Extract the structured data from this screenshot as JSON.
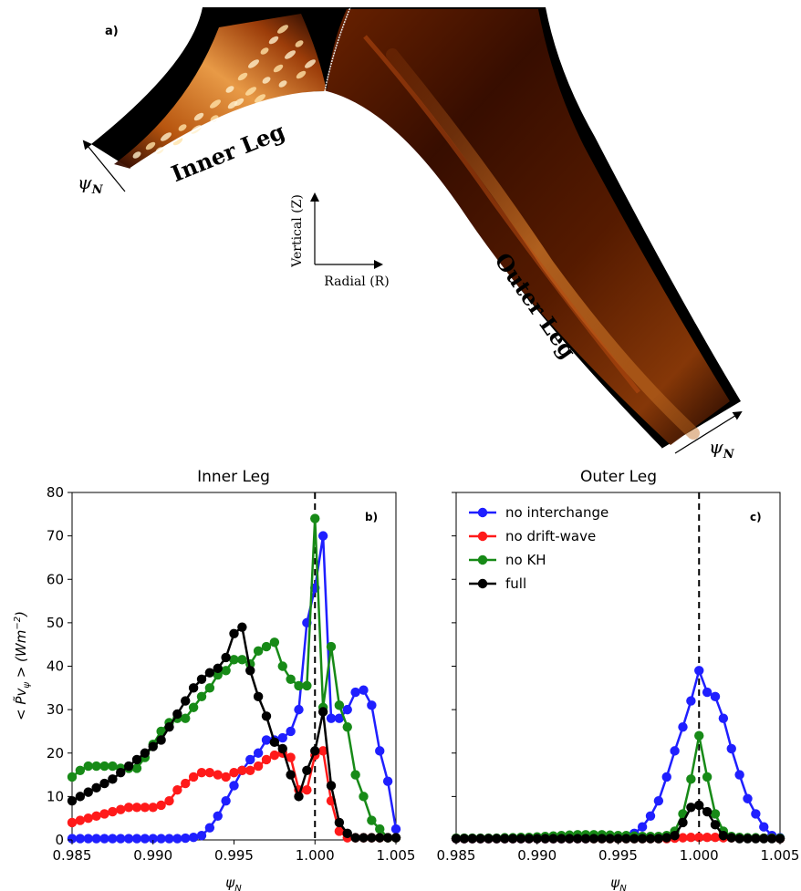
{
  "panel_a": {
    "label": "a)",
    "inner_leg_label": "Inner Leg",
    "outer_leg_label": "Outer Leg",
    "vertical_axis_label": "Vertical (Z)",
    "radial_axis_label": "Radial (R)",
    "psi_label_left": "ψ",
    "psi_label_right": "ψ",
    "psi_subscript": "N"
  },
  "colors": {
    "no_interchange": "#1f1fff",
    "no_drift_wave": "#ff1a1a",
    "no_kh": "#178a17",
    "full": "#000000",
    "image_dark": "#000000",
    "image_mid": "#7a2500",
    "image_bright": "#ffb060"
  },
  "chart_data": [
    {
      "type": "line",
      "panel_label": "b)",
      "title": "Inner Leg",
      "xlabel": "ψ",
      "xlabel_sub": "N",
      "ylabel": "< P̃v",
      "ylabel_sub": "ψ",
      "ylabel_tail": " > (Wm",
      "ylabel_sup": "−2",
      "ylabel_end": ")",
      "xlim": [
        0.985,
        1.005
      ],
      "ylim": [
        0,
        80
      ],
      "xticks": [
        "0.985",
        "0.990",
        "0.995",
        "1.000",
        "1.005"
      ],
      "yticks": [
        "0",
        "10",
        "20",
        "30",
        "40",
        "50",
        "60",
        "70",
        "80"
      ],
      "vline": 1.0,
      "series": [
        {
          "name": "no interchange",
          "color_key": "no_interchange",
          "x": [
            0.985,
            0.9855,
            0.986,
            0.9865,
            0.987,
            0.9875,
            0.988,
            0.9885,
            0.989,
            0.9895,
            0.99,
            0.9905,
            0.991,
            0.9915,
            0.992,
            0.9925,
            0.993,
            0.9935,
            0.994,
            0.9945,
            0.995,
            0.9955,
            0.996,
            0.9965,
            0.997,
            0.9975,
            0.998,
            0.9985,
            0.999,
            0.9995,
            1.0,
            1.0005,
            1.001,
            1.0015,
            1.002,
            1.0025,
            1.003,
            1.0035,
            1.004,
            1.0045,
            1.005
          ],
          "y": [
            0.3,
            0.3,
            0.3,
            0.3,
            0.3,
            0.3,
            0.3,
            0.3,
            0.3,
            0.3,
            0.3,
            0.3,
            0.3,
            0.3,
            0.4,
            0.6,
            1.0,
            2.8,
            5.5,
            9.0,
            12.5,
            16.0,
            18.5,
            20.0,
            23.0,
            23.0,
            23.5,
            25.0,
            30.0,
            50.0,
            58.0,
            70.0,
            28.0,
            28.0,
            30.0,
            34.0,
            34.5,
            31.0,
            20.5,
            13.5,
            2.5
          ]
        },
        {
          "name": "no drift-wave",
          "color_key": "no_drift_wave",
          "x": [
            0.985,
            0.9855,
            0.986,
            0.9865,
            0.987,
            0.9875,
            0.988,
            0.9885,
            0.989,
            0.9895,
            0.99,
            0.9905,
            0.991,
            0.9915,
            0.992,
            0.9925,
            0.993,
            0.9935,
            0.994,
            0.9945,
            0.995,
            0.9955,
            0.996,
            0.9965,
            0.997,
            0.9975,
            0.998,
            0.9985,
            0.999,
            0.9995,
            1.0,
            1.0005,
            1.001,
            1.0015,
            1.002,
            1.0025,
            1.003,
            1.0035,
            1.004,
            1.0045,
            1.005
          ],
          "y": [
            4.0,
            4.5,
            5.0,
            5.5,
            6.0,
            6.5,
            7.0,
            7.5,
            7.5,
            7.5,
            7.5,
            8.0,
            9.0,
            11.5,
            13.0,
            14.5,
            15.5,
            15.5,
            15.0,
            14.5,
            15.5,
            16.0,
            16.0,
            17.0,
            18.5,
            19.5,
            20.0,
            19.0,
            11.5,
            11.5,
            19.5,
            20.5,
            9.0,
            2.0,
            0.5,
            0.5,
            0.5,
            0.5,
            0.5,
            0.5,
            0.5
          ]
        },
        {
          "name": "no KH",
          "color_key": "no_kh",
          "x": [
            0.985,
            0.9855,
            0.986,
            0.9865,
            0.987,
            0.9875,
            0.988,
            0.9885,
            0.989,
            0.9895,
            0.99,
            0.9905,
            0.991,
            0.9915,
            0.992,
            0.9925,
            0.993,
            0.9935,
            0.994,
            0.9945,
            0.995,
            0.9955,
            0.996,
            0.9965,
            0.997,
            0.9975,
            0.998,
            0.9985,
            0.999,
            0.9995,
            1.0,
            1.0005,
            1.001,
            1.0015,
            1.002,
            1.0025,
            1.003,
            1.0035,
            1.004,
            1.0045,
            1.005
          ],
          "y": [
            14.5,
            16.0,
            17.0,
            17.0,
            17.0,
            17.0,
            16.5,
            16.5,
            16.5,
            19.0,
            22.0,
            25.0,
            27.0,
            28.0,
            28.0,
            30.5,
            33.0,
            35.0,
            38.0,
            39.0,
            41.5,
            41.5,
            40.5,
            43.5,
            44.5,
            45.5,
            40.0,
            37.0,
            35.5,
            35.5,
            74.0,
            30.5,
            44.5,
            31.0,
            26.0,
            15.0,
            10.0,
            4.5,
            2.5,
            0.5,
            0.5
          ]
        },
        {
          "name": "full",
          "color_key": "full",
          "x": [
            0.985,
            0.9855,
            0.986,
            0.9865,
            0.987,
            0.9875,
            0.988,
            0.9885,
            0.989,
            0.9895,
            0.99,
            0.9905,
            0.991,
            0.9915,
            0.992,
            0.9925,
            0.993,
            0.9935,
            0.994,
            0.9945,
            0.995,
            0.9955,
            0.996,
            0.9965,
            0.997,
            0.9975,
            0.998,
            0.9985,
            0.999,
            0.9995,
            1.0,
            1.0005,
            1.001,
            1.0015,
            1.002,
            1.0025,
            1.003,
            1.0035,
            1.004,
            1.0045,
            1.005
          ],
          "y": [
            9.0,
            10.0,
            11.0,
            12.0,
            13.0,
            14.0,
            15.5,
            17.0,
            18.5,
            20.0,
            21.5,
            23.0,
            26.0,
            29.0,
            32.0,
            35.0,
            37.0,
            38.5,
            39.5,
            42.0,
            47.5,
            49.0,
            39.0,
            33.0,
            28.5,
            22.5,
            21.0,
            15.0,
            10.0,
            16.0,
            20.5,
            29.5,
            12.5,
            4.0,
            1.5,
            0.5,
            0.5,
            0.5,
            0.5,
            0.5,
            0.5
          ]
        }
      ]
    },
    {
      "type": "line",
      "panel_label": "c)",
      "title": "Outer Leg",
      "xlabel": "ψ",
      "xlabel_sub": "N",
      "xlim": [
        0.985,
        1.005
      ],
      "ylim": [
        0,
        80
      ],
      "xticks": [
        "0.985",
        "0.990",
        "0.995",
        "1.000",
        "1.005"
      ],
      "vline": 1.0,
      "legend": "top-left",
      "series": [
        {
          "name": "no interchange",
          "color_key": "no_interchange",
          "x": [
            0.985,
            0.9855,
            0.986,
            0.9865,
            0.987,
            0.9875,
            0.988,
            0.9885,
            0.989,
            0.9895,
            0.99,
            0.9905,
            0.991,
            0.9915,
            0.992,
            0.9925,
            0.993,
            0.9935,
            0.994,
            0.9945,
            0.995,
            0.9955,
            0.996,
            0.9965,
            0.997,
            0.9975,
            0.998,
            0.9985,
            0.999,
            0.9995,
            1.0,
            1.0005,
            1.001,
            1.0015,
            1.002,
            1.0025,
            1.003,
            1.0035,
            1.004,
            1.0045,
            1.005
          ],
          "y": [
            0.3,
            0.3,
            0.3,
            0.3,
            0.3,
            0.3,
            0.3,
            0.3,
            0.3,
            0.3,
            0.3,
            0.3,
            0.3,
            0.3,
            0.3,
            0.3,
            0.3,
            0.4,
            0.4,
            0.4,
            0.5,
            0.8,
            1.5,
            3.0,
            5.5,
            9.0,
            14.5,
            20.5,
            26.0,
            32.0,
            39.0,
            34.0,
            33.0,
            28.0,
            21.0,
            15.0,
            9.5,
            6.0,
            3.0,
            1.0,
            0.5
          ]
        },
        {
          "name": "no drift-wave",
          "color_key": "no_drift_wave",
          "x": [
            0.985,
            0.9855,
            0.986,
            0.9865,
            0.987,
            0.9875,
            0.988,
            0.9885,
            0.989,
            0.9895,
            0.99,
            0.9905,
            0.991,
            0.9915,
            0.992,
            0.9925,
            0.993,
            0.9935,
            0.994,
            0.9945,
            0.995,
            0.9955,
            0.996,
            0.9965,
            0.997,
            0.9975,
            0.998,
            0.9985,
            0.999,
            0.9995,
            1.0,
            1.0005,
            1.001,
            1.0015,
            1.002,
            1.0025,
            1.003,
            1.0035,
            1.004,
            1.0045,
            1.005
          ],
          "y": [
            0.3,
            0.3,
            0.3,
            0.3,
            0.3,
            0.3,
            0.3,
            0.3,
            0.3,
            0.3,
            0.3,
            0.3,
            0.3,
            0.3,
            0.3,
            0.3,
            0.3,
            0.3,
            0.3,
            0.3,
            0.3,
            0.3,
            0.3,
            0.3,
            0.3,
            0.3,
            0.3,
            0.4,
            0.5,
            0.6,
            0.6,
            0.6,
            0.6,
            0.5,
            0.5,
            0.5,
            0.4,
            0.4,
            0.4,
            0.4,
            0.3
          ]
        },
        {
          "name": "no KH",
          "color_key": "no_kh",
          "x": [
            0.985,
            0.9855,
            0.986,
            0.9865,
            0.987,
            0.9875,
            0.988,
            0.9885,
            0.989,
            0.9895,
            0.99,
            0.9905,
            0.991,
            0.9915,
            0.992,
            0.9925,
            0.993,
            0.9935,
            0.994,
            0.9945,
            0.995,
            0.9955,
            0.996,
            0.9965,
            0.997,
            0.9975,
            0.998,
            0.9985,
            0.999,
            0.9995,
            1.0,
            1.0005,
            1.001,
            1.0015,
            1.002,
            1.0025,
            1.003,
            1.0035,
            1.004,
            1.0045,
            1.005
          ],
          "y": [
            0.4,
            0.4,
            0.4,
            0.4,
            0.4,
            0.4,
            0.5,
            0.5,
            0.6,
            0.6,
            0.7,
            0.8,
            0.9,
            1.0,
            1.1,
            1.2,
            1.2,
            1.2,
            1.2,
            1.1,
            1.0,
            1.0,
            0.9,
            0.8,
            0.8,
            0.8,
            1.0,
            2.0,
            6.0,
            14.0,
            24.0,
            14.5,
            6.0,
            2.0,
            0.8,
            0.6,
            0.5,
            0.5,
            0.4,
            0.4,
            0.4
          ]
        },
        {
          "name": "full",
          "color_key": "full",
          "x": [
            0.985,
            0.9855,
            0.986,
            0.9865,
            0.987,
            0.9875,
            0.988,
            0.9885,
            0.989,
            0.9895,
            0.99,
            0.9905,
            0.991,
            0.9915,
            0.992,
            0.9925,
            0.993,
            0.9935,
            0.994,
            0.9945,
            0.995,
            0.9955,
            0.996,
            0.9965,
            0.997,
            0.9975,
            0.998,
            0.9985,
            0.999,
            0.9995,
            1.0,
            1.0005,
            1.001,
            1.0015,
            1.002,
            1.0025,
            1.003,
            1.0035,
            1.004,
            1.0045,
            1.005
          ],
          "y": [
            0.3,
            0.3,
            0.3,
            0.3,
            0.3,
            0.3,
            0.3,
            0.3,
            0.3,
            0.3,
            0.3,
            0.3,
            0.3,
            0.3,
            0.3,
            0.3,
            0.3,
            0.3,
            0.3,
            0.3,
            0.3,
            0.3,
            0.3,
            0.3,
            0.3,
            0.3,
            0.5,
            1.0,
            4.0,
            7.5,
            8.0,
            6.5,
            3.5,
            1.0,
            0.5,
            0.3,
            0.3,
            0.3,
            0.3,
            0.3,
            0.3
          ]
        }
      ]
    }
  ]
}
